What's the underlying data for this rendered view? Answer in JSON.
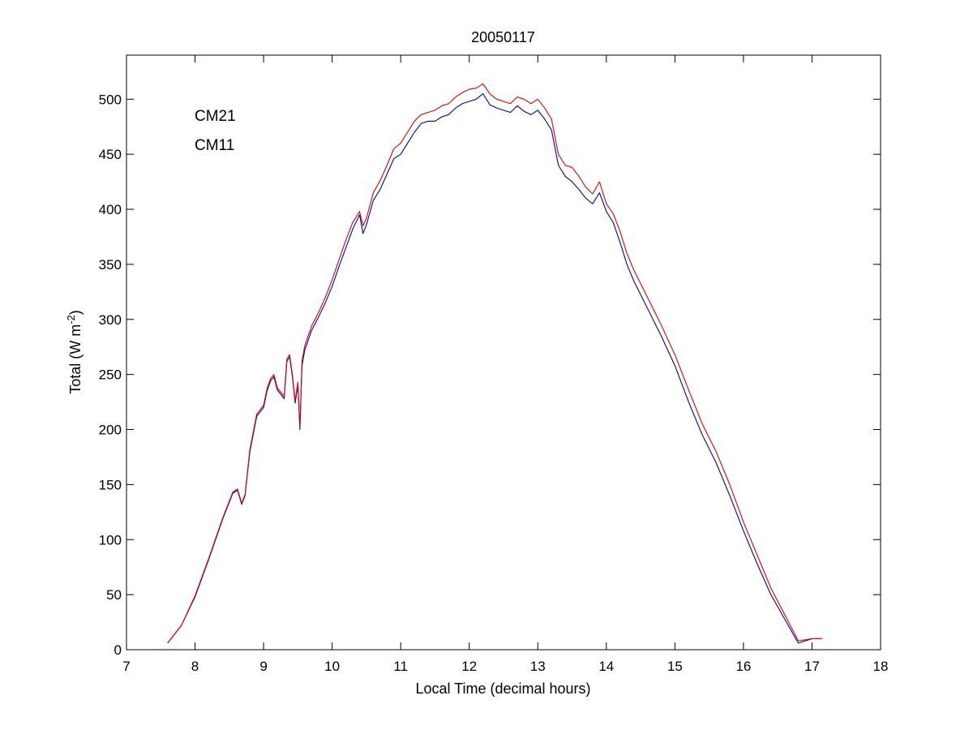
{
  "chart_data": {
    "type": "line",
    "title": "20050117",
    "xlabel": "Local Time (decimal hours)",
    "ylabel_main": "Total (W m",
    "ylabel_sup": "-2",
    "ylabel_close": ")",
    "xlim": [
      7,
      18
    ],
    "ylim": [
      0,
      540
    ],
    "xticks": [
      "7",
      "8",
      "9",
      "10",
      "11",
      "12",
      "13",
      "14",
      "15",
      "16",
      "17",
      "18"
    ],
    "yticks": [
      "0",
      "50",
      "100",
      "150",
      "200",
      "250",
      "300",
      "350",
      "400",
      "450",
      "500"
    ],
    "grid": false,
    "legend_position": "top-left",
    "series": [
      {
        "name": "CM21",
        "color": "#0000b0",
        "x": [
          7.6,
          7.8,
          8.0,
          8.2,
          8.4,
          8.55,
          8.62,
          8.68,
          8.73,
          8.8,
          8.9,
          9.0,
          9.05,
          9.1,
          9.15,
          9.2,
          9.25,
          9.3,
          9.34,
          9.38,
          9.42,
          9.46,
          9.5,
          9.53,
          9.56,
          9.6,
          9.7,
          9.8,
          9.9,
          10.0,
          10.1,
          10.2,
          10.3,
          10.4,
          10.45,
          10.5,
          10.6,
          10.7,
          10.8,
          10.9,
          11.0,
          11.1,
          11.2,
          11.3,
          11.4,
          11.5,
          11.6,
          11.7,
          11.8,
          11.9,
          12.0,
          12.1,
          12.2,
          12.3,
          12.4,
          12.5,
          12.6,
          12.7,
          12.8,
          12.9,
          13.0,
          13.1,
          13.2,
          13.3,
          13.4,
          13.5,
          13.6,
          13.7,
          13.8,
          13.9,
          14.0,
          14.1,
          14.2,
          14.3,
          14.4,
          14.6,
          14.8,
          15.0,
          15.2,
          15.4,
          15.6,
          15.8,
          16.0,
          16.2,
          16.4,
          16.6,
          16.8,
          17.0,
          17.15
        ],
        "values": [
          6,
          22,
          48,
          82,
          118,
          142,
          145,
          132,
          140,
          180,
          212,
          220,
          235,
          244,
          248,
          236,
          232,
          228,
          262,
          266,
          248,
          224,
          240,
          200,
          258,
          272,
          290,
          302,
          315,
          330,
          348,
          365,
          382,
          395,
          378,
          386,
          408,
          418,
          432,
          446,
          450,
          460,
          470,
          478,
          480,
          480,
          484,
          486,
          492,
          496,
          498,
          500,
          505,
          495,
          492,
          490,
          488,
          494,
          489,
          486,
          490,
          482,
          472,
          440,
          430,
          425,
          418,
          410,
          405,
          415,
          398,
          388,
          370,
          350,
          335,
          310,
          285,
          258,
          225,
          195,
          170,
          140,
          108,
          78,
          50,
          28,
          6,
          10,
          10
        ],
        "note": ""
      },
      {
        "name": "CM11",
        "color": "#e00000",
        "x": [
          7.6,
          7.8,
          8.0,
          8.2,
          8.4,
          8.55,
          8.62,
          8.68,
          8.73,
          8.8,
          8.9,
          9.0,
          9.05,
          9.1,
          9.15,
          9.2,
          9.25,
          9.3,
          9.34,
          9.38,
          9.42,
          9.46,
          9.5,
          9.53,
          9.56,
          9.6,
          9.7,
          9.8,
          9.9,
          10.0,
          10.1,
          10.2,
          10.3,
          10.4,
          10.45,
          10.5,
          10.6,
          10.7,
          10.8,
          10.9,
          11.0,
          11.1,
          11.2,
          11.3,
          11.4,
          11.5,
          11.6,
          11.7,
          11.8,
          11.9,
          12.0,
          12.1,
          12.2,
          12.3,
          12.4,
          12.5,
          12.6,
          12.7,
          12.8,
          12.9,
          13.0,
          13.1,
          13.2,
          13.3,
          13.4,
          13.5,
          13.6,
          13.7,
          13.8,
          13.9,
          14.0,
          14.1,
          14.2,
          14.3,
          14.4,
          14.6,
          14.8,
          15.0,
          15.2,
          15.4,
          15.6,
          15.8,
          16.0,
          16.2,
          16.4,
          16.6,
          16.8,
          17.0,
          17.15
        ],
        "values": [
          6,
          22,
          49,
          83,
          119,
          143,
          146,
          133,
          141,
          182,
          214,
          222,
          237,
          246,
          250,
          238,
          234,
          230,
          264,
          268,
          250,
          226,
          243,
          202,
          262,
          276,
          294,
          306,
          320,
          336,
          354,
          372,
          388,
          398,
          385,
          392,
          415,
          426,
          440,
          455,
          460,
          470,
          480,
          486,
          488,
          490,
          494,
          496,
          502,
          506,
          509,
          510,
          514,
          505,
          500,
          498,
          496,
          502,
          500,
          496,
          500,
          492,
          482,
          450,
          440,
          438,
          430,
          420,
          414,
          425,
          405,
          396,
          380,
          360,
          345,
          320,
          295,
          268,
          236,
          205,
          180,
          150,
          116,
          86,
          56,
          32,
          8,
          10,
          10
        ]
      }
    ]
  }
}
